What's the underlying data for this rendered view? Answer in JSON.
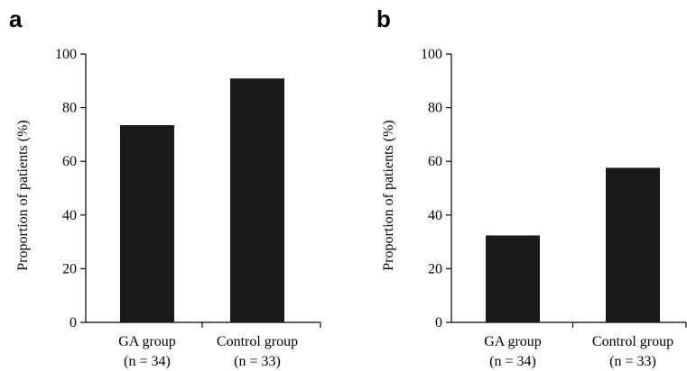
{
  "chart_data": [
    {
      "type": "bar",
      "panel_label": "a",
      "categories": [
        "GA group",
        "Control group"
      ],
      "category_sublabels": [
        "(n = 34)",
        "(n = 33)"
      ],
      "values": [
        73.5,
        90.9
      ],
      "ylabel": "Proportion of patients (%)",
      "xlabel": "",
      "ylim": [
        0,
        100
      ],
      "yticks": [
        0,
        20,
        40,
        60,
        80,
        100
      ],
      "bar_color": "#1a1a1a",
      "grid": false
    },
    {
      "type": "bar",
      "panel_label": "b",
      "categories": [
        "GA group",
        "Control group"
      ],
      "category_sublabels": [
        "(n = 34)",
        "(n = 33)"
      ],
      "values": [
        32.4,
        57.6
      ],
      "ylabel": "Proportion of patients (%)",
      "xlabel": "",
      "ylim": [
        0,
        100
      ],
      "yticks": [
        0,
        20,
        40,
        60,
        80,
        100
      ],
      "bar_color": "#1a1a1a",
      "grid": false
    }
  ]
}
